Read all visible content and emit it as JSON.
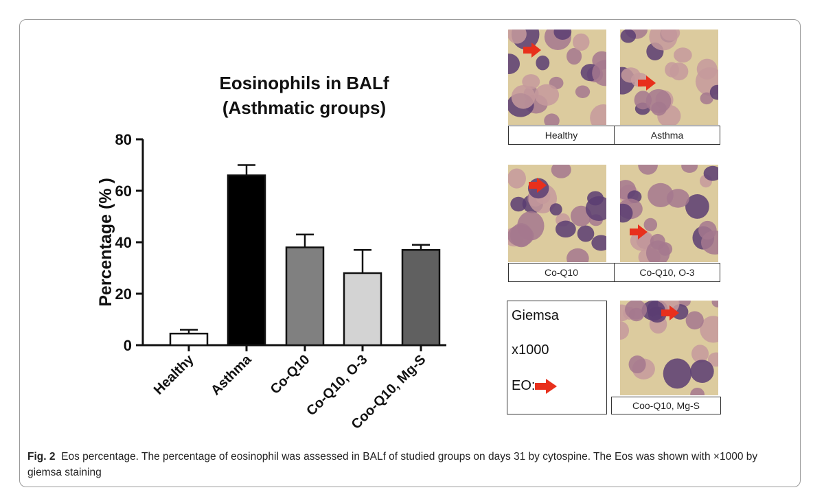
{
  "chart_data": {
    "type": "bar",
    "title": [
      "Eosinophils in BALf",
      "(Asthmatic groups)"
    ],
    "ylabel": "Percentage (% )",
    "xlabel": "",
    "ylim": [
      0,
      80
    ],
    "yticks": [
      0,
      20,
      40,
      60,
      80
    ],
    "categories": [
      "Healthy",
      "Asthma",
      "Co-Q10",
      "Co-Q10, O-3",
      "Coo-Q10, Mg-S"
    ],
    "values": [
      4.5,
      66,
      38,
      28,
      37
    ],
    "error_upper": [
      6,
      70,
      43,
      37,
      39
    ],
    "bar_colors": [
      "#ffffff",
      "#000000",
      "#808080",
      "#d3d3d3",
      "#606060"
    ],
    "error_bars": true,
    "grid": false
  },
  "panels": {
    "row1": [
      "Healthy",
      "Asthma"
    ],
    "row2": [
      "Co-Q10",
      "Co-Q10, O-3"
    ],
    "row3": [
      "Coo-Q10, Mg-S"
    ]
  },
  "legend": {
    "stain": "Giemsa",
    "magnification": "x1000",
    "eo_label": "EO:",
    "arrow_color": "#e8301c"
  },
  "caption": {
    "fig_label": "Fig. 2",
    "text": "Eos percentage. The percentage of eosinophil was assessed in BALf of studied groups on days 31 by cytospine. The Eos was shown with ×1000 by giemsa staining"
  }
}
